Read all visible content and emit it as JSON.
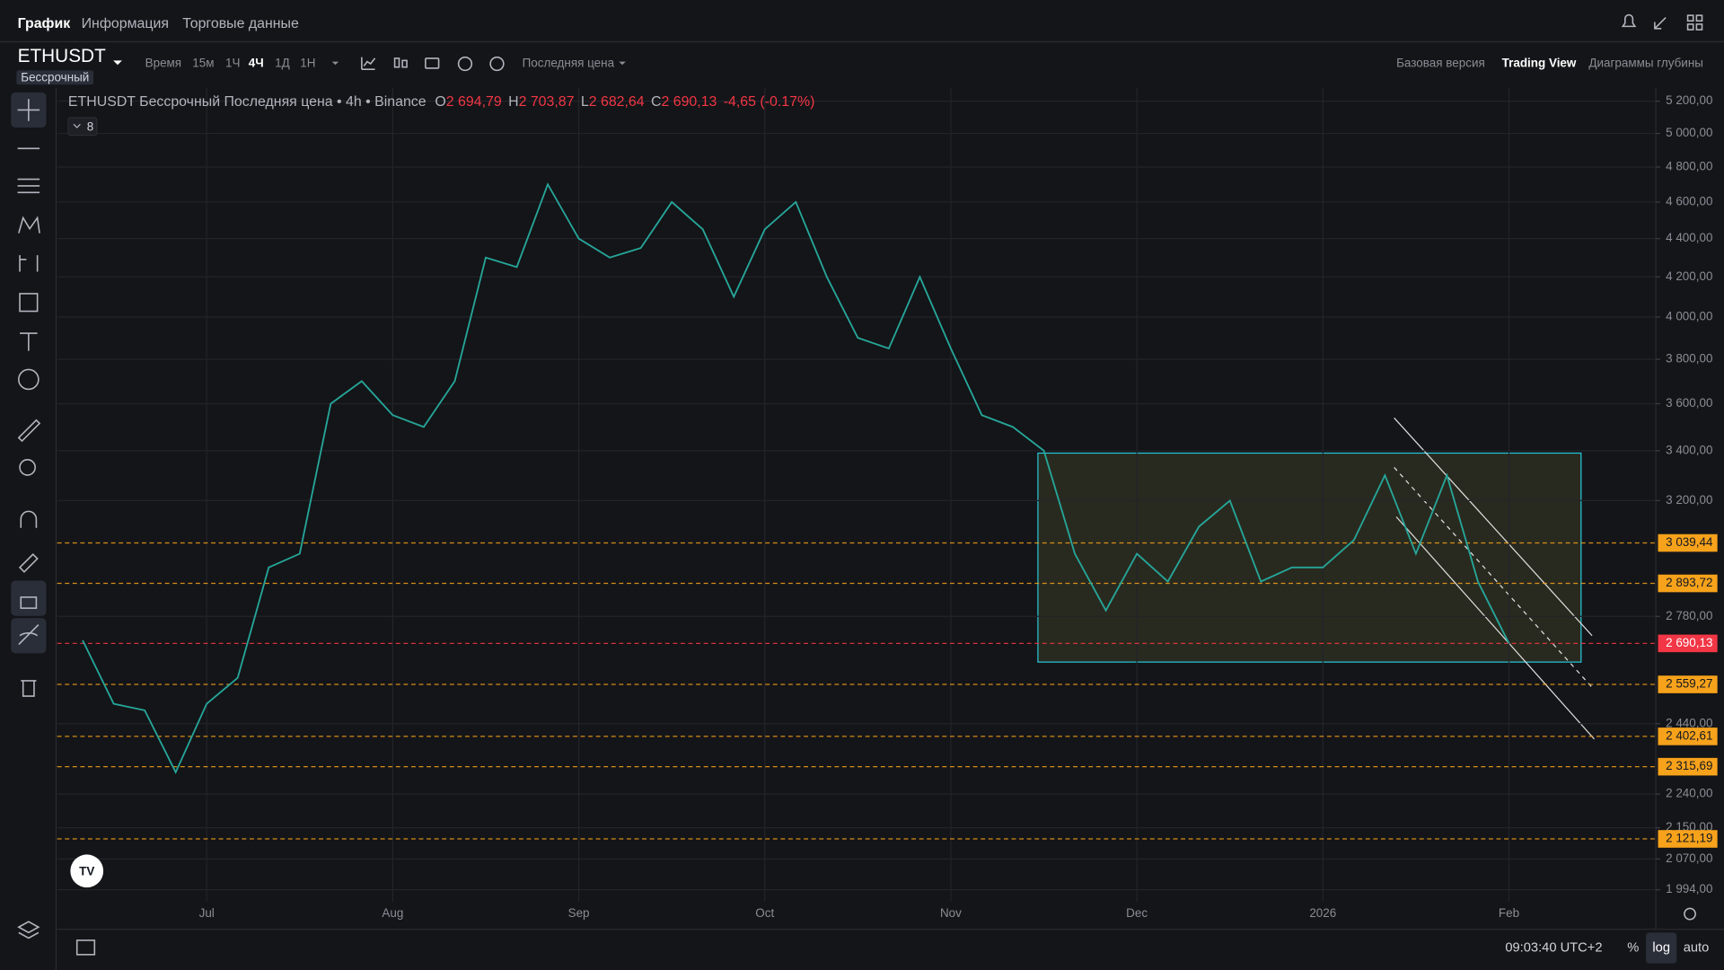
{
  "tabs": [
    "График",
    "Информация",
    "Торговые данные"
  ],
  "symbol": "ETHUSDT",
  "contract": "Бессрочный",
  "toolbar": {
    "time_label": "Время",
    "intervals": [
      "15м",
      "1Ч",
      "4Ч",
      "1Д",
      "1Н"
    ],
    "price_source": "Последняя цена",
    "views": [
      "Базовая версия",
      "Trading View",
      "Диаграммы глубины"
    ]
  },
  "status_bar": {
    "time": "09:03:40 UTC+2",
    "buttons": [
      "%",
      "log",
      "auto"
    ]
  },
  "chart_data": {
    "type": "line",
    "title": "ETHUSDT Бессрочный Последняя цена • 4h • Binance",
    "ohlc": [
      [
        "O",
        "2 694,79"
      ],
      [
        "H",
        "2 703,87"
      ],
      [
        "L",
        "2 682,64"
      ],
      [
        "C",
        "2 690,13"
      ]
    ],
    "change": "-4,65 (-0.17%)",
    "indicator_count": "8",
    "log_scale": true,
    "grid": true,
    "categories": [
      null,
      null,
      null,
      null,
      "Jul",
      null,
      null,
      null,
      null,
      null,
      "Aug",
      null,
      null,
      null,
      null,
      null,
      "Sep",
      null,
      null,
      null,
      null,
      null,
      "Oct",
      null,
      null,
      null,
      null,
      null,
      "Nov",
      null,
      null,
      null,
      null,
      null,
      "Dec",
      null,
      null,
      null,
      null,
      null,
      "2026",
      null,
      null,
      null,
      null,
      null,
      "Feb"
    ],
    "series": [
      {
        "name": "ETHUSDT",
        "color": "#26a69a",
        "values": [
          2700,
          2500,
          2480,
          2300,
          2500,
          2580,
          2950,
          3000,
          3600,
          3700,
          3550,
          3500,
          3700,
          4300,
          4250,
          4700,
          4400,
          4300,
          4350,
          4600,
          4450,
          4100,
          4450,
          4600,
          4200,
          3900,
          3850,
          4200,
          3850,
          3550,
          3500,
          3400,
          3000,
          2800,
          3000,
          2900,
          3100,
          3200,
          2900,
          2950,
          2950,
          3050,
          3300,
          3000,
          3300,
          2900,
          2690.13
        ]
      }
    ],
    "ylim": [
      1965,
      5284
    ],
    "yticks": [
      {
        "value": 5200,
        "label": "5 200,00"
      },
      {
        "value": 5000,
        "label": "5 000,00"
      },
      {
        "value": 4800,
        "label": "4 800,00"
      },
      {
        "value": 4600,
        "label": "4 600,00"
      },
      {
        "value": 4400,
        "label": "4 400,00"
      },
      {
        "value": 4200,
        "label": "4 200,00"
      },
      {
        "value": 4000,
        "label": "4 000,00"
      },
      {
        "value": 3800,
        "label": "3 800,00"
      },
      {
        "value": 3600,
        "label": "3 600,00"
      },
      {
        "value": 3400,
        "label": "3 400,00"
      },
      {
        "value": 3200,
        "label": "3 200,00"
      },
      {
        "value": 2780,
        "label": "2 780,00"
      },
      {
        "value": 2440,
        "label": "2 440,00"
      },
      {
        "value": 2240,
        "label": "2 240,00"
      },
      {
        "value": 2150,
        "label": "2 150,00"
      },
      {
        "value": 2070,
        "label": "2 070,00"
      },
      {
        "value": 1994,
        "label": "1 994,00"
      }
    ],
    "price_levels": [
      {
        "value": 3039.44,
        "label": "3 039,44",
        "color": "#f7a21b"
      },
      {
        "value": 2893.72,
        "label": "2 893,72",
        "color": "#f7a21b"
      },
      {
        "value": 2690.13,
        "label": "2 690,13",
        "color": "#f23645"
      },
      {
        "value": 2559.27,
        "label": "2 559,27",
        "color": "#f7a21b"
      },
      {
        "value": 2402.61,
        "label": "2 402,61",
        "color": "#f7a21b"
      },
      {
        "value": 2315.69,
        "label": "2 315,69",
        "color": "#f7a21b"
      },
      {
        "value": 2121.19,
        "label": "2 121,19",
        "color": "#f7a21b"
      }
    ]
  }
}
